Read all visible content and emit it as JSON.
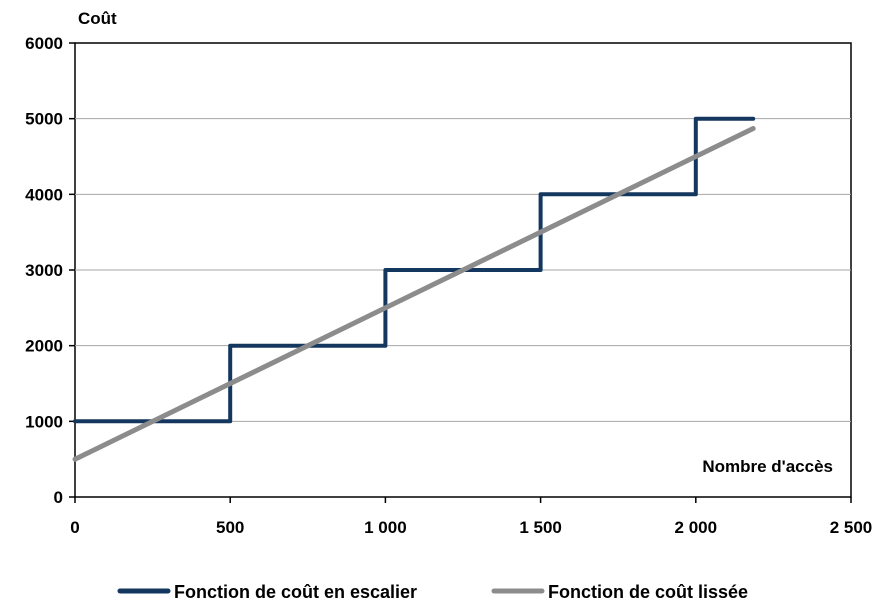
{
  "chart_data": {
    "type": "line",
    "title": "",
    "xlabel": "Nombre d'accès",
    "ylabel": "Coût",
    "xlim": [
      0,
      2500
    ],
    "ylim": [
      0,
      6000
    ],
    "x_ticks": [
      0,
      500,
      1000,
      1500,
      2000,
      2500
    ],
    "x_tick_labels": [
      "0",
      "500",
      "1 000",
      "1 500",
      "2 000",
      "2 500"
    ],
    "y_ticks": [
      0,
      1000,
      2000,
      3000,
      4000,
      5000,
      6000
    ],
    "y_tick_labels": [
      "0",
      "1000",
      "2000",
      "3000",
      "4000",
      "5000",
      "6000"
    ],
    "grid": {
      "horizontal": true,
      "vertical": false
    },
    "legend_position": "bottom",
    "series": [
      {
        "name": "Fonction de coût en escalier",
        "color": "#13375f",
        "style": "step",
        "points": [
          [
            0,
            1000
          ],
          [
            500,
            1000
          ],
          [
            500,
            2000
          ],
          [
            1000,
            2000
          ],
          [
            1000,
            3000
          ],
          [
            1500,
            3000
          ],
          [
            1500,
            4000
          ],
          [
            2000,
            4000
          ],
          [
            2000,
            5000
          ],
          [
            2185,
            5000
          ]
        ]
      },
      {
        "name": "Fonction de coût lissée",
        "color": "#8c8c8c",
        "style": "line",
        "points": [
          [
            0,
            500
          ],
          [
            2185,
            4870
          ]
        ]
      }
    ]
  }
}
